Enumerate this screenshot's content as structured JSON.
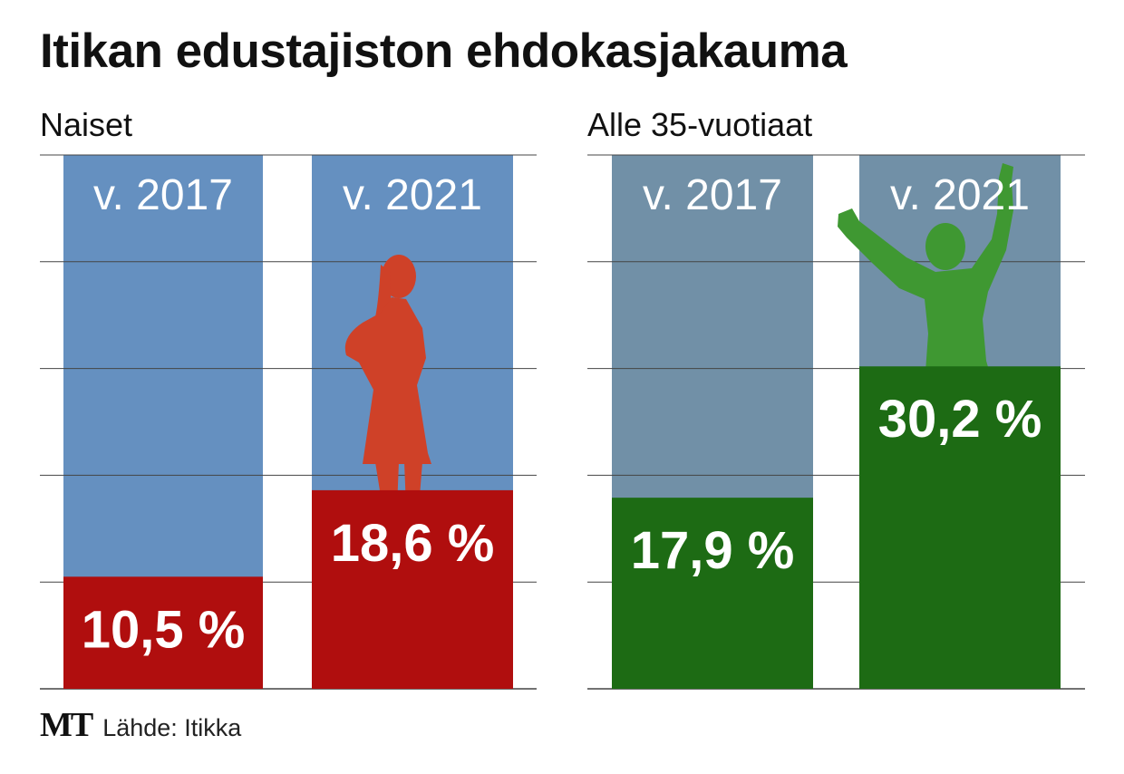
{
  "title": "Itikan edustajiston ehdokasjakauma",
  "footer": {
    "logo": "MT",
    "source": "Lähde: Itikka"
  },
  "colors": {
    "women_background": "#6590c0",
    "women_fill": "#b00e0e",
    "women_figure": "#cf4128",
    "youth_background": "#7190a7",
    "youth_fill": "#1d6b14",
    "youth_figure": "#3f9832",
    "bar_label": "#ffffff",
    "gridline": "#444444"
  },
  "chart_data": [
    {
      "type": "bar",
      "title": "Naiset",
      "categories": [
        "v. 2017",
        "v. 2021"
      ],
      "values": [
        10.5,
        18.6
      ],
      "value_labels": [
        "10,5 %",
        "18,6 %"
      ],
      "ylim": [
        0,
        50
      ],
      "ylabel": "",
      "xlabel": "",
      "grid": true,
      "icon": "woman-silhouette-icon"
    },
    {
      "type": "bar",
      "title": "Alle 35-vuotiaat",
      "categories": [
        "v. 2017",
        "v. 2021"
      ],
      "values": [
        17.9,
        30.2
      ],
      "value_labels": [
        "17,9 %",
        "30,2 %"
      ],
      "ylim": [
        0,
        50
      ],
      "ylabel": "",
      "xlabel": "",
      "grid": true,
      "icon": "jumping-man-silhouette-icon"
    }
  ]
}
